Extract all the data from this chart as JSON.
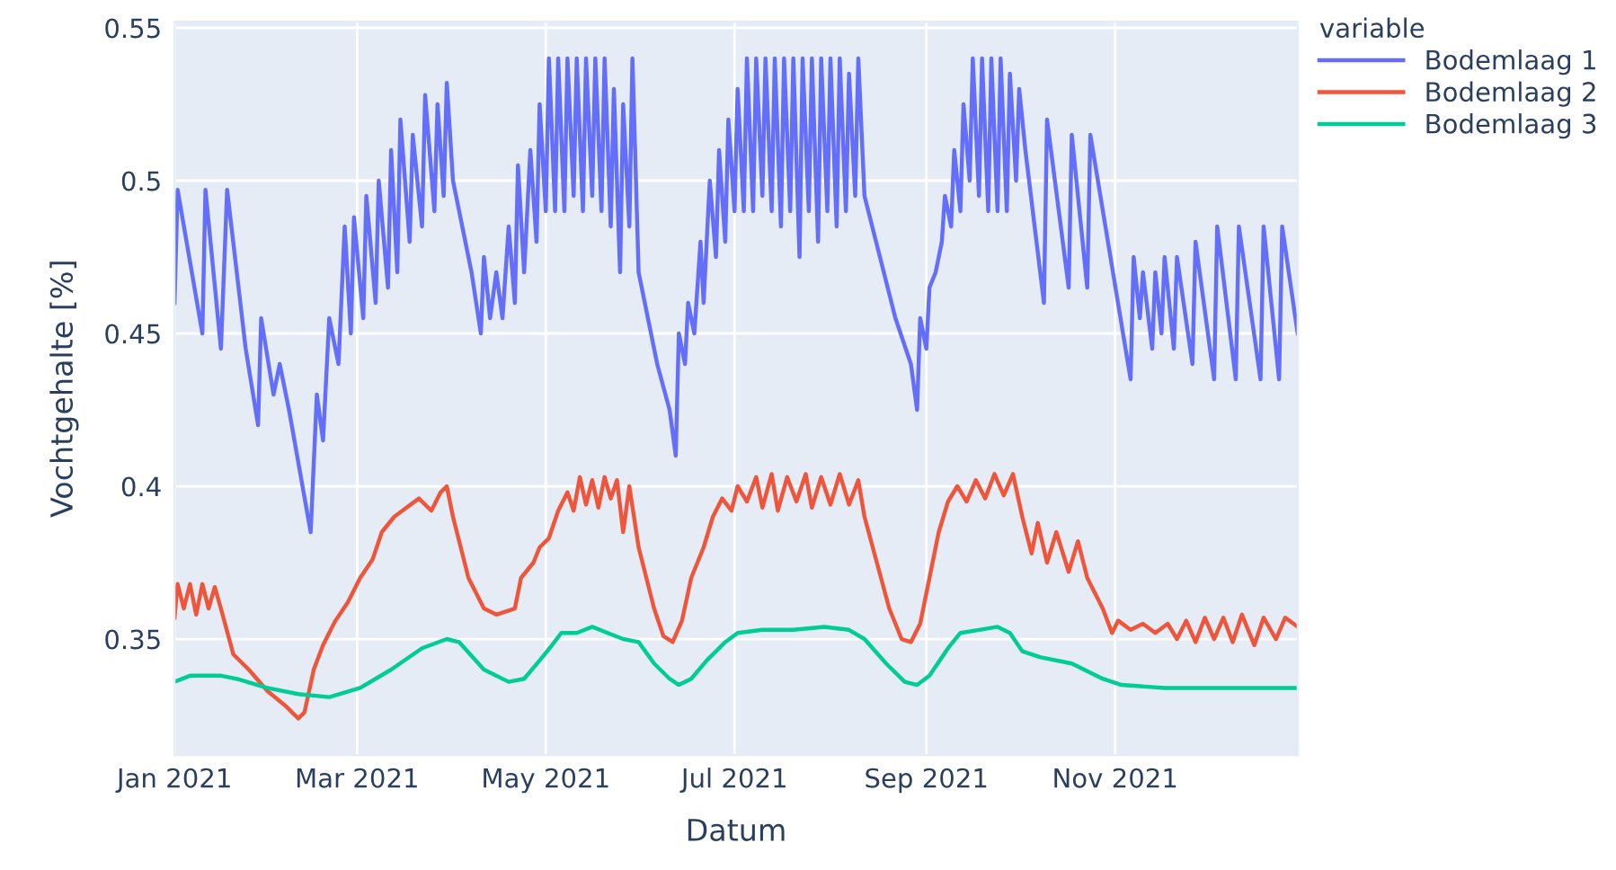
{
  "chart_data": {
    "type": "line",
    "xlabel": "Datum",
    "ylabel": "Vochtgehalte [%]",
    "legend_title": "variable",
    "legend": "top right",
    "grid": true,
    "line_style": "solid",
    "xlim": [
      "2021-01-01",
      "2021-12-30"
    ],
    "xticks": [
      {
        "value": "2021-01-01",
        "label": "Jan 2021"
      },
      {
        "value": "2021-03-01",
        "label": "Mar 2021"
      },
      {
        "value": "2021-05-01",
        "label": "May 2021"
      },
      {
        "value": "2021-07-01",
        "label": "Jul 2021"
      },
      {
        "value": "2021-09-01",
        "label": "Sep 2021"
      },
      {
        "value": "2021-11-01",
        "label": "Nov 2021"
      }
    ],
    "ylim": [
      0.312,
      0.552
    ],
    "yticks": [
      0.35,
      0.4,
      0.45,
      0.5,
      0.55
    ],
    "series": [
      {
        "name": "Bodemlaag 1",
        "color": "#636efa",
        "x": [
          "2021-01-01",
          "2021-01-02",
          "2021-01-10",
          "2021-01-11",
          "2021-01-16",
          "2021-01-18",
          "2021-01-24",
          "2021-01-28",
          "2021-01-29",
          "2021-02-02",
          "2021-02-04",
          "2021-02-07",
          "2021-02-14",
          "2021-02-16",
          "2021-02-18",
          "2021-02-20",
          "2021-02-23",
          "2021-02-25",
          "2021-02-27",
          "2021-02-28",
          "2021-03-03",
          "2021-03-04",
          "2021-03-07",
          "2021-03-08",
          "2021-03-11",
          "2021-03-12",
          "2021-03-14",
          "2021-03-15",
          "2021-03-18",
          "2021-03-19",
          "2021-03-22",
          "2021-03-23",
          "2021-03-26",
          "2021-03-27",
          "2021-03-29",
          "2021-03-30",
          "2021-04-01",
          "2021-04-07",
          "2021-04-10",
          "2021-04-11",
          "2021-04-13",
          "2021-04-15",
          "2021-04-17",
          "2021-04-19",
          "2021-04-21",
          "2021-04-22",
          "2021-04-24",
          "2021-04-26",
          "2021-04-28",
          "2021-04-29",
          "2021-05-01",
          "2021-05-02",
          "2021-05-04",
          "2021-05-05",
          "2021-05-07",
          "2021-05-08",
          "2021-05-10",
          "2021-05-11",
          "2021-05-13",
          "2021-05-14",
          "2021-05-16",
          "2021-05-17",
          "2021-05-19",
          "2021-05-20",
          "2021-05-22",
          "2021-05-23",
          "2021-05-25",
          "2021-05-26",
          "2021-05-28",
          "2021-05-29",
          "2021-05-31",
          "2021-06-06",
          "2021-06-10",
          "2021-06-12",
          "2021-06-13",
          "2021-06-15",
          "2021-06-16",
          "2021-06-18",
          "2021-06-20",
          "2021-06-21",
          "2021-06-23",
          "2021-06-25",
          "2021-06-26",
          "2021-06-28",
          "2021-06-29",
          "2021-07-01",
          "2021-07-02",
          "2021-07-04",
          "2021-07-05",
          "2021-07-07",
          "2021-07-08",
          "2021-07-10",
          "2021-07-11",
          "2021-07-13",
          "2021-07-14",
          "2021-07-16",
          "2021-07-17",
          "2021-07-19",
          "2021-07-20",
          "2021-07-22",
          "2021-07-23",
          "2021-07-25",
          "2021-07-26",
          "2021-07-28",
          "2021-07-29",
          "2021-07-31",
          "2021-08-01",
          "2021-08-03",
          "2021-08-04",
          "2021-08-06",
          "2021-08-07",
          "2021-08-09",
          "2021-08-10",
          "2021-08-12",
          "2021-08-17",
          "2021-08-22",
          "2021-08-27",
          "2021-08-29",
          "2021-08-30",
          "2021-09-01",
          "2021-09-02",
          "2021-09-04",
          "2021-09-06",
          "2021-09-07",
          "2021-09-09",
          "2021-09-10",
          "2021-09-12",
          "2021-09-13",
          "2021-09-15",
          "2021-09-16",
          "2021-09-18",
          "2021-09-19",
          "2021-09-21",
          "2021-09-22",
          "2021-09-24",
          "2021-09-25",
          "2021-09-27",
          "2021-09-28",
          "2021-09-30",
          "2021-10-01",
          "2021-10-03",
          "2021-10-09",
          "2021-10-10",
          "2021-10-17",
          "2021-10-18",
          "2021-10-23",
          "2021-10-24",
          "2021-11-06",
          "2021-11-07",
          "2021-11-09",
          "2021-11-10",
          "2021-11-13",
          "2021-11-14",
          "2021-11-16",
          "2021-11-17",
          "2021-11-20",
          "2021-11-21",
          "2021-11-26",
          "2021-11-27",
          "2021-12-03",
          "2021-12-04",
          "2021-12-10",
          "2021-12-11",
          "2021-12-18",
          "2021-12-19",
          "2021-12-24",
          "2021-12-25",
          "2021-12-30"
        ],
        "values": [
          0.46,
          0.497,
          0.45,
          0.497,
          0.445,
          0.497,
          0.445,
          0.42,
          0.455,
          0.43,
          0.44,
          0.425,
          0.385,
          0.43,
          0.415,
          0.455,
          0.44,
          0.485,
          0.45,
          0.488,
          0.455,
          0.495,
          0.46,
          0.5,
          0.465,
          0.51,
          0.47,
          0.52,
          0.48,
          0.515,
          0.485,
          0.528,
          0.49,
          0.525,
          0.495,
          0.532,
          0.5,
          0.47,
          0.45,
          0.475,
          0.455,
          0.47,
          0.455,
          0.485,
          0.46,
          0.505,
          0.47,
          0.51,
          0.48,
          0.525,
          0.49,
          0.54,
          0.49,
          0.54,
          0.49,
          0.54,
          0.495,
          0.54,
          0.49,
          0.54,
          0.495,
          0.54,
          0.49,
          0.54,
          0.485,
          0.53,
          0.47,
          0.525,
          0.485,
          0.54,
          0.47,
          0.44,
          0.425,
          0.41,
          0.45,
          0.44,
          0.46,
          0.45,
          0.48,
          0.46,
          0.5,
          0.475,
          0.51,
          0.48,
          0.52,
          0.49,
          0.53,
          0.49,
          0.54,
          0.49,
          0.54,
          0.495,
          0.54,
          0.49,
          0.54,
          0.485,
          0.54,
          0.49,
          0.54,
          0.475,
          0.54,
          0.49,
          0.54,
          0.48,
          0.54,
          0.49,
          0.54,
          0.485,
          0.54,
          0.49,
          0.535,
          0.495,
          0.54,
          0.495,
          0.475,
          0.455,
          0.44,
          0.425,
          0.455,
          0.445,
          0.465,
          0.47,
          0.48,
          0.495,
          0.485,
          0.51,
          0.49,
          0.525,
          0.5,
          0.54,
          0.495,
          0.54,
          0.49,
          0.54,
          0.49,
          0.54,
          0.49,
          0.535,
          0.5,
          0.53,
          0.51,
          0.46,
          0.52,
          0.465,
          0.515,
          0.465,
          0.515,
          0.435,
          0.475,
          0.455,
          0.47,
          0.445,
          0.47,
          0.45,
          0.475,
          0.445,
          0.475,
          0.44,
          0.48,
          0.435,
          0.485,
          0.435,
          0.485,
          0.435,
          0.485,
          0.435,
          0.485,
          0.45
        ]
      },
      {
        "name": "Bodemlaag 2",
        "color": "#ef553b",
        "x": [
          "2021-01-01",
          "2021-01-02",
          "2021-01-04",
          "2021-01-06",
          "2021-01-08",
          "2021-01-10",
          "2021-01-12",
          "2021-01-14",
          "2021-01-16",
          "2021-01-20",
          "2021-01-25",
          "2021-01-31",
          "2021-02-06",
          "2021-02-10",
          "2021-02-12",
          "2021-02-15",
          "2021-02-18",
          "2021-02-22",
          "2021-02-26",
          "2021-03-02",
          "2021-03-06",
          "2021-03-09",
          "2021-03-13",
          "2021-03-17",
          "2021-03-21",
          "2021-03-25",
          "2021-03-28",
          "2021-03-30",
          "2021-04-01",
          "2021-04-06",
          "2021-04-11",
          "2021-04-15",
          "2021-04-21",
          "2021-04-23",
          "2021-04-27",
          "2021-04-29",
          "2021-05-02",
          "2021-05-05",
          "2021-05-08",
          "2021-05-10",
          "2021-05-12",
          "2021-05-14",
          "2021-05-16",
          "2021-05-18",
          "2021-05-20",
          "2021-05-22",
          "2021-05-24",
          "2021-05-26",
          "2021-05-28",
          "2021-05-31",
          "2021-06-05",
          "2021-06-08",
          "2021-06-11",
          "2021-06-14",
          "2021-06-17",
          "2021-06-21",
          "2021-06-24",
          "2021-06-27",
          "2021-06-30",
          "2021-07-02",
          "2021-07-05",
          "2021-07-08",
          "2021-07-10",
          "2021-07-13",
          "2021-07-15",
          "2021-07-18",
          "2021-07-21",
          "2021-07-24",
          "2021-07-26",
          "2021-07-29",
          "2021-08-01",
          "2021-08-04",
          "2021-08-07",
          "2021-08-10",
          "2021-08-12",
          "2021-08-16",
          "2021-08-20",
          "2021-08-24",
          "2021-08-27",
          "2021-08-30",
          "2021-09-02",
          "2021-09-05",
          "2021-09-08",
          "2021-09-11",
          "2021-09-14",
          "2021-09-17",
          "2021-09-20",
          "2021-09-23",
          "2021-09-26",
          "2021-09-29",
          "2021-10-02",
          "2021-10-05",
          "2021-10-07",
          "2021-10-10",
          "2021-10-13",
          "2021-10-17",
          "2021-10-20",
          "2021-10-23",
          "2021-10-28",
          "2021-10-31",
          "2021-11-02",
          "2021-11-06",
          "2021-11-10",
          "2021-11-14",
          "2021-11-18",
          "2021-11-21",
          "2021-11-24",
          "2021-11-27",
          "2021-11-30",
          "2021-12-03",
          "2021-12-06",
          "2021-12-09",
          "2021-12-12",
          "2021-12-16",
          "2021-12-19",
          "2021-12-23",
          "2021-12-26",
          "2021-12-30"
        ],
        "values": [
          0.357,
          0.368,
          0.36,
          0.368,
          0.358,
          0.368,
          0.36,
          0.367,
          0.36,
          0.345,
          0.34,
          0.333,
          0.328,
          0.324,
          0.326,
          0.34,
          0.348,
          0.356,
          0.362,
          0.37,
          0.376,
          0.385,
          0.39,
          0.393,
          0.396,
          0.392,
          0.398,
          0.4,
          0.39,
          0.37,
          0.36,
          0.358,
          0.36,
          0.37,
          0.375,
          0.38,
          0.383,
          0.392,
          0.398,
          0.392,
          0.403,
          0.394,
          0.402,
          0.393,
          0.403,
          0.396,
          0.402,
          0.385,
          0.4,
          0.38,
          0.36,
          0.351,
          0.349,
          0.356,
          0.37,
          0.38,
          0.39,
          0.396,
          0.392,
          0.4,
          0.395,
          0.403,
          0.393,
          0.404,
          0.392,
          0.403,
          0.395,
          0.404,
          0.393,
          0.403,
          0.394,
          0.404,
          0.394,
          0.402,
          0.39,
          0.375,
          0.36,
          0.35,
          0.349,
          0.355,
          0.37,
          0.385,
          0.395,
          0.4,
          0.395,
          0.402,
          0.396,
          0.404,
          0.397,
          0.404,
          0.39,
          0.378,
          0.388,
          0.375,
          0.385,
          0.372,
          0.382,
          0.37,
          0.36,
          0.352,
          0.356,
          0.353,
          0.355,
          0.352,
          0.355,
          0.35,
          0.356,
          0.349,
          0.357,
          0.35,
          0.357,
          0.349,
          0.358,
          0.348,
          0.357,
          0.35,
          0.357,
          0.354
        ]
      },
      {
        "name": "Bodemlaag 3",
        "color": "#00cc96",
        "x": [
          "2021-01-01",
          "2021-01-06",
          "2021-01-16",
          "2021-01-21",
          "2021-01-31",
          "2021-02-10",
          "2021-02-20",
          "2021-03-02",
          "2021-03-12",
          "2021-03-22",
          "2021-03-30",
          "2021-04-03",
          "2021-04-11",
          "2021-04-19",
          "2021-04-24",
          "2021-04-29",
          "2021-05-03",
          "2021-05-06",
          "2021-05-11",
          "2021-05-16",
          "2021-05-21",
          "2021-05-26",
          "2021-05-31",
          "2021-06-05",
          "2021-06-10",
          "2021-06-13",
          "2021-06-17",
          "2021-06-22",
          "2021-06-28",
          "2021-07-02",
          "2021-07-10",
          "2021-07-20",
          "2021-07-30",
          "2021-08-07",
          "2021-08-12",
          "2021-08-19",
          "2021-08-25",
          "2021-08-29",
          "2021-09-02",
          "2021-09-08",
          "2021-09-12",
          "2021-09-18",
          "2021-09-24",
          "2021-09-28",
          "2021-10-02",
          "2021-10-08",
          "2021-10-18",
          "2021-10-28",
          "2021-11-03",
          "2021-11-17",
          "2021-12-07",
          "2021-12-30"
        ],
        "values": [
          0.336,
          0.338,
          0.338,
          0.337,
          0.334,
          0.332,
          0.331,
          0.334,
          0.34,
          0.347,
          0.35,
          0.349,
          0.34,
          0.336,
          0.337,
          0.343,
          0.348,
          0.352,
          0.352,
          0.354,
          0.352,
          0.35,
          0.349,
          0.342,
          0.337,
          0.335,
          0.337,
          0.343,
          0.349,
          0.352,
          0.353,
          0.353,
          0.354,
          0.353,
          0.35,
          0.342,
          0.336,
          0.335,
          0.338,
          0.347,
          0.352,
          0.353,
          0.354,
          0.352,
          0.346,
          0.344,
          0.342,
          0.337,
          0.335,
          0.334,
          0.334,
          0.334
        ]
      }
    ]
  }
}
